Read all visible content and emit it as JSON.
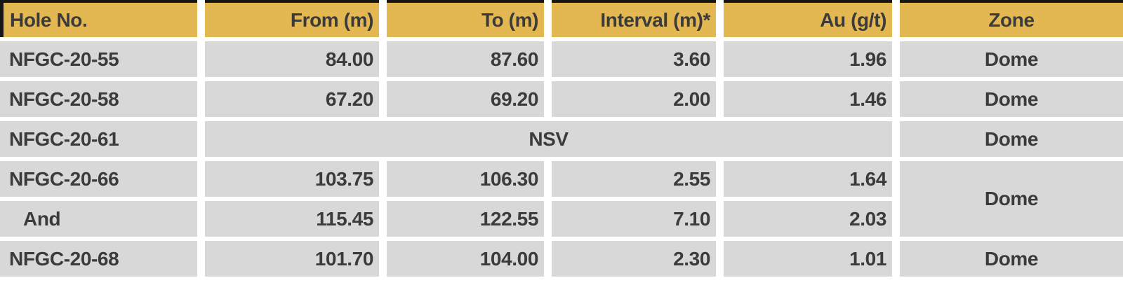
{
  "table": {
    "title": "drill-intercept-results",
    "columns": [
      {
        "label": "Hole No."
      },
      {
        "label": "From (m)"
      },
      {
        "label": "To (m)"
      },
      {
        "label": "Interval (m)*"
      },
      {
        "label": "Au (g/t)"
      },
      {
        "label": "Zone"
      }
    ],
    "rows": [
      {
        "hole": "NFGC-20-55",
        "from": "84.00",
        "to": "87.60",
        "interval": "3.60",
        "au": "1.96",
        "zone": "Dome"
      },
      {
        "hole": "NFGC-20-58",
        "from": "67.20",
        "to": "69.20",
        "interval": "2.00",
        "au": "1.46",
        "zone": "Dome"
      },
      {
        "hole": "NFGC-20-61",
        "nsv": "NSV",
        "zone": "Dome"
      },
      {
        "hole": "NFGC-20-66",
        "from": "103.75",
        "to": "106.30",
        "interval": "2.55",
        "au": "1.64",
        "zone": "Dome"
      },
      {
        "hole": "And",
        "from": "115.45",
        "to": "122.55",
        "interval": "7.10",
        "au": "2.03"
      },
      {
        "hole": "NFGC-20-68",
        "from": "101.70",
        "to": "104.00",
        "interval": "2.30",
        "au": "1.01",
        "zone": "Dome"
      }
    ],
    "colors": {
      "header_bg": "#e3b751",
      "row_bg": "#d8d8d8",
      "text": "#3b3b3b",
      "border": "#161616",
      "gap": "#ffffff"
    }
  }
}
